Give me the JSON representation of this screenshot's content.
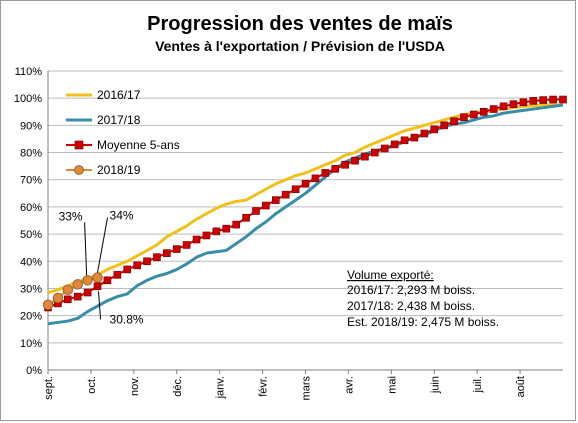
{
  "chart_data": {
    "type": "line",
    "title": "Progression des ventes de maïs",
    "subtitle": "Ventes à l'exportation / Prévision de l'USDA",
    "x_tick_labels": [
      "sept.",
      "oct.",
      "nov.",
      "déc.",
      "janv.",
      "févr.",
      "mars",
      "avr.",
      "mai",
      "juin",
      "juil.",
      "août"
    ],
    "y_tick_labels": [
      "0%",
      "10%",
      "20%",
      "30%",
      "40%",
      "50%",
      "60%",
      "70%",
      "80%",
      "90%",
      "100%",
      "110%"
    ],
    "ylim": [
      0,
      110
    ],
    "x_range_weeks": [
      0,
      52
    ],
    "grid": "horizontal",
    "legend_position": "top-left",
    "series": [
      {
        "name": "2016/17",
        "color": "#f2c01a",
        "weeks": [
          0,
          1,
          2,
          3,
          4,
          5,
          6,
          7,
          8,
          9,
          10,
          11,
          12,
          13,
          14,
          15,
          16,
          17,
          18,
          19,
          20,
          21,
          22,
          23,
          24,
          25,
          26,
          27,
          28,
          29,
          30,
          31,
          32,
          33,
          34,
          35,
          36,
          37,
          38,
          39,
          40,
          41,
          42,
          43,
          44,
          45,
          46,
          47,
          48,
          49,
          50,
          51,
          52
        ],
        "values": [
          28.5,
          29.5,
          31,
          32.5,
          33.5,
          35,
          37,
          38.5,
          40,
          42,
          44,
          46,
          49,
          51,
          53,
          55.5,
          57.5,
          59.5,
          61,
          62,
          62.5,
          64.5,
          66.5,
          68.5,
          70,
          71.5,
          72.5,
          74,
          75.5,
          77,
          79,
          80,
          82,
          83.5,
          85,
          86.5,
          88,
          89,
          90,
          91,
          92,
          93,
          94,
          94.5,
          95,
          95.5,
          96,
          96.5,
          97,
          97.2,
          97.4,
          97.5,
          97.5
        ]
      },
      {
        "name": "2017/18",
        "color": "#3a8da8",
        "weeks": [
          0,
          1,
          2,
          3,
          4,
          5,
          6,
          7,
          8,
          9,
          10,
          11,
          12,
          13,
          14,
          15,
          16,
          17,
          18,
          19,
          20,
          21,
          22,
          23,
          24,
          25,
          26,
          27,
          28,
          29,
          30,
          31,
          32,
          33,
          34,
          35,
          36,
          37,
          38,
          39,
          40,
          41,
          42,
          43,
          44,
          45,
          46,
          47,
          48,
          49,
          50,
          51,
          52
        ],
        "values": [
          17,
          17.5,
          18,
          19,
          21.5,
          23.5,
          25.5,
          27,
          28,
          31,
          33,
          34.5,
          35.5,
          37,
          39,
          41.5,
          43,
          43.5,
          44,
          46.5,
          49,
          52,
          54.5,
          57.5,
          60,
          62.5,
          65,
          68,
          71,
          74,
          76.5,
          78,
          79.5,
          80.5,
          81.5,
          82.5,
          84,
          85.5,
          86.5,
          88,
          89.5,
          90.5,
          91,
          92,
          93,
          93.5,
          94.5,
          95,
          95.5,
          96,
          96.5,
          97,
          97.5
        ]
      },
      {
        "name": "Moyenne 5-ans",
        "color": "#cc0000",
        "weeks": [
          0,
          1,
          2,
          3,
          4,
          5,
          6,
          7,
          8,
          9,
          10,
          11,
          12,
          13,
          14,
          15,
          16,
          17,
          18,
          19,
          20,
          21,
          22,
          23,
          24,
          25,
          26,
          27,
          28,
          29,
          30,
          31,
          32,
          33,
          34,
          35,
          36,
          37,
          38,
          39,
          40,
          41,
          42,
          43,
          44,
          45,
          46,
          47,
          48,
          49,
          50,
          51,
          52
        ],
        "values": [
          23,
          24.5,
          26,
          27,
          28.5,
          30.8,
          33,
          35,
          37,
          38.5,
          40,
          41.5,
          43,
          44.5,
          46,
          48,
          49.5,
          51,
          52,
          53.5,
          56,
          58.5,
          60.5,
          62.5,
          64.5,
          66.5,
          68.5,
          70.5,
          72.5,
          74,
          75.5,
          77,
          78.5,
          80,
          81.5,
          83,
          84.5,
          85.5,
          87,
          88.5,
          90,
          91.5,
          93,
          94,
          95,
          96,
          97,
          97.8,
          98.5,
          99,
          99.3,
          99.5,
          99.5
        ]
      },
      {
        "name": "2018/19",
        "color": "#e0873a",
        "weeks": [
          0,
          1,
          2,
          3,
          4,
          5
        ],
        "values": [
          24,
          26.5,
          29.5,
          31.5,
          33,
          34
        ]
      }
    ],
    "annotations": [
      {
        "text": "33%",
        "week": 4,
        "value": 33
      },
      {
        "text": "34%",
        "week": 5,
        "value": 34
      },
      {
        "text": "30.8%",
        "week": 5,
        "value": 30.8
      }
    ],
    "volume_box": {
      "heading": "Volume exporté:",
      "lines": [
        "2016/17: 2,293 M boiss.",
        "2017/18: 2,438 M boiss.",
        "Est. 2018/19: 2,475 M boiss."
      ]
    }
  }
}
